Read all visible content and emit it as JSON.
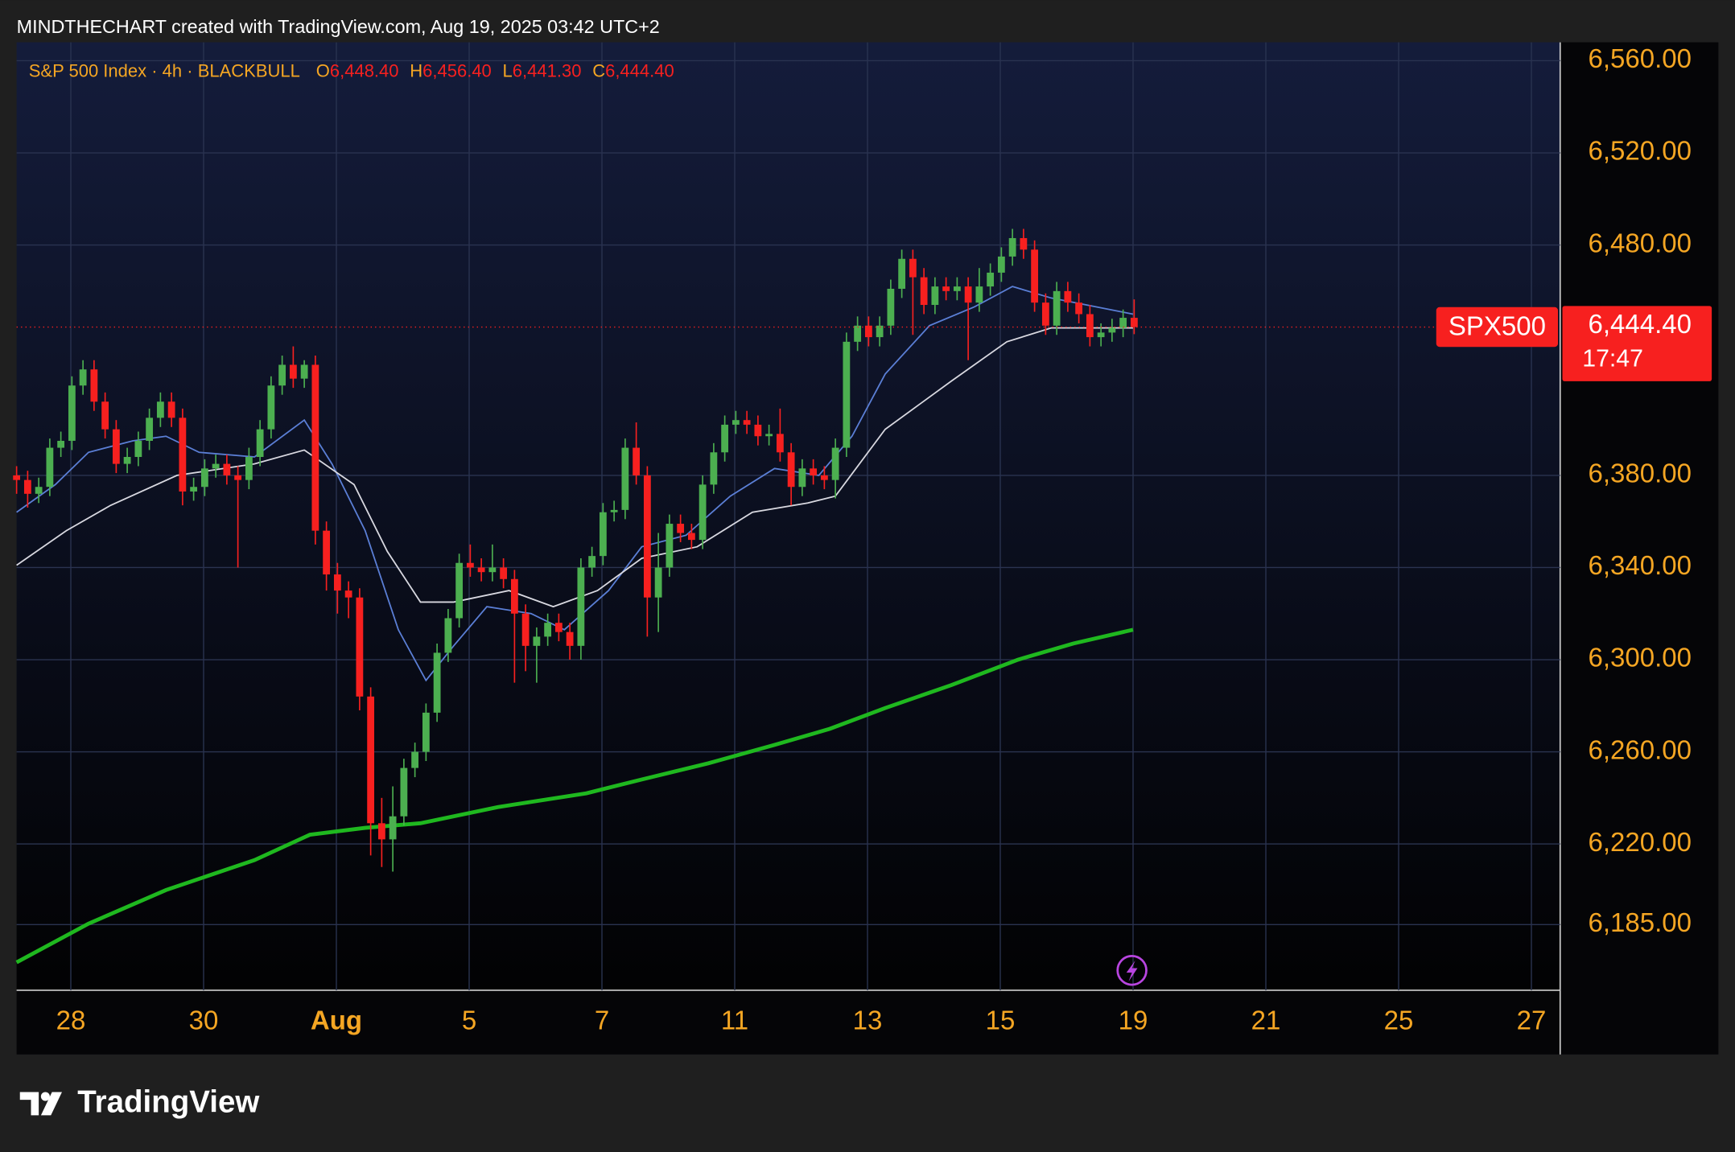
{
  "header": {
    "caption": "MINDTHECHART created with TradingView.com, Aug 19, 2025 03:42 UTC+2"
  },
  "footer": {
    "brand": "TradingView"
  },
  "chart_data": {
    "type": "candlestick",
    "title": "S&P 500 Index · 4h · BLACKBULL",
    "ohlc_legend": [
      {
        "key": "O",
        "value": "6,448.40"
      },
      {
        "key": "H",
        "value": "6,456.40"
      },
      {
        "key": "L",
        "value": "6,441.30"
      },
      {
        "key": "C",
        "value": "6,444.40"
      }
    ],
    "symbol_label": "SPX500",
    "price_label": "6,444.40",
    "countdown": "17:47",
    "up_color": "#4caf50",
    "down_color": "#f7201f",
    "open": [
      6380,
      6378,
      6372,
      6375,
      6392,
      6395,
      6419,
      6426,
      6412,
      6400,
      6385,
      6388,
      6395,
      6405,
      6412,
      6405,
      6373,
      6375,
      6383,
      6385,
      6380,
      6378,
      6388,
      6400,
      6419,
      6428,
      6422,
      6428,
      6356,
      6337,
      6330,
      6327,
      6284,
      6229,
      6222,
      6232,
      6253,
      6260,
      6277,
      6303,
      6318,
      6342,
      6340,
      6338,
      6340,
      6335,
      6320,
      6306,
      6310,
      6316,
      6312,
      6306,
      6340,
      6345,
      6364,
      6365,
      6392,
      6380,
      6327,
      6340,
      6359,
      6355,
      6352,
      6376,
      6390,
      6402,
      6404,
      6402,
      6397,
      6398,
      6390,
      6375,
      6383,
      6380,
      6378,
      6392,
      6438,
      6445,
      6440,
      6445,
      6461,
      6474,
      6466,
      6454,
      6462,
      6460,
      6462,
      6455,
      6462,
      6468,
      6475,
      6483,
      6478,
      6455,
      6445,
      6460,
      6455,
      6450,
      6440,
      6442,
      6444,
      6448.4
    ],
    "high": [
      6384,
      6382,
      6379,
      6396,
      6399,
      6423,
      6430,
      6430,
      6416,
      6404,
      6392,
      6399,
      6409,
      6416,
      6416,
      6409,
      6379,
      6387,
      6389,
      6389,
      6384,
      6392,
      6404,
      6423,
      6432,
      6436,
      6430,
      6432,
      6360,
      6342,
      6334,
      6331,
      6288,
      6240,
      6245,
      6257,
      6264,
      6281,
      6307,
      6322,
      6346,
      6350,
      6344,
      6350,
      6344,
      6339,
      6324,
      6314,
      6320,
      6320,
      6316,
      6344,
      6349,
      6368,
      6369,
      6396,
      6403,
      6384,
      6355,
      6363,
      6363,
      6359,
      6380,
      6394,
      6406,
      6408,
      6408,
      6406,
      6402,
      6409,
      6394,
      6387,
      6387,
      6384,
      6396,
      6442,
      6449,
      6449,
      6449,
      6465,
      6478,
      6478,
      6470,
      6466,
      6466,
      6466,
      6466,
      6470,
      6472,
      6479,
      6487,
      6487,
      6482,
      6459,
      6464,
      6464,
      6459,
      6454,
      6446,
      6448,
      6452,
      6456.4
    ],
    "low": [
      6372,
      6366,
      6368,
      6371,
      6388,
      6391,
      6415,
      6408,
      6396,
      6381,
      6381,
      6384,
      6391,
      6401,
      6401,
      6367,
      6369,
      6371,
      6379,
      6376,
      6340,
      6374,
      6384,
      6396,
      6415,
      6418,
      6418,
      6350,
      6330,
      6320,
      6318,
      6278,
      6215,
      6210,
      6208,
      6228,
      6249,
      6256,
      6273,
      6299,
      6314,
      6336,
      6334,
      6334,
      6331,
      6290,
      6295,
      6290,
      6306,
      6308,
      6300,
      6300,
      6336,
      6341,
      6360,
      6361,
      6376,
      6310,
      6312,
      6336,
      6351,
      6348,
      6348,
      6372,
      6386,
      6398,
      6398,
      6393,
      6393,
      6386,
      6367,
      6371,
      6376,
      6374,
      6370,
      6388,
      6434,
      6436,
      6436,
      6441,
      6457,
      6441,
      6450,
      6450,
      6456,
      6456,
      6430,
      6451,
      6458,
      6464,
      6471,
      6474,
      6451,
      6441,
      6441,
      6451,
      6446,
      6436,
      6436,
      6438,
      6440,
      6441.3
    ],
    "close": [
      6378,
      6372,
      6375,
      6392,
      6395,
      6419,
      6426,
      6412,
      6400,
      6385,
      6388,
      6395,
      6405,
      6412,
      6405,
      6373,
      6375,
      6383,
      6385,
      6380,
      6378,
      6388,
      6400,
      6419,
      6428,
      6422,
      6428,
      6356,
      6337,
      6330,
      6327,
      6284,
      6229,
      6222,
      6232,
      6253,
      6260,
      6277,
      6303,
      6318,
      6342,
      6340,
      6338,
      6340,
      6335,
      6320,
      6306,
      6310,
      6316,
      6312,
      6306,
      6340,
      6345,
      6364,
      6365,
      6392,
      6380,
      6327,
      6340,
      6359,
      6355,
      6352,
      6376,
      6390,
      6402,
      6404,
      6402,
      6397,
      6398,
      6390,
      6375,
      6383,
      6380,
      6378,
      6392,
      6438,
      6445,
      6440,
      6445,
      6461,
      6474,
      6466,
      6454,
      6462,
      6460,
      6462,
      6455,
      6462,
      6468,
      6475,
      6483,
      6478,
      6455,
      6445,
      6460,
      6455,
      6450,
      6440,
      6442,
      6444,
      6448.4,
      6444.4
    ],
    "series": [
      {
        "color": "#5b7fd6",
        "x": [
          0,
          3.5,
          6.5,
          10.5,
          13.5,
          16.5,
          21.5,
          26,
          28.5,
          31.5,
          34.5,
          37,
          39.5,
          42.5,
          46.5,
          49.5,
          53.5,
          56.5,
          60.5,
          64.5,
          68.5,
          72.5,
          75.5,
          78.5,
          82.5,
          86.5,
          90,
          93.5,
          100.9
        ],
        "values": [
          6364,
          6376,
          6390,
          6395,
          6397,
          6390,
          6388,
          6404,
          6385,
          6356,
          6313,
          6291,
          6306,
          6323,
          6320,
          6313,
          6330,
          6349,
          6354,
          6371,
          6383,
          6380,
          6397,
          6424,
          6445,
          6453,
          6462,
          6457,
          6450
        ]
      },
      {
        "color": "#d8d8e0",
        "x": [
          0,
          4.5,
          8.5,
          14.5,
          21.5,
          26,
          30.5,
          33.5,
          36.5,
          39.5,
          44.5,
          48.5,
          52.5,
          56.5,
          61.5,
          66.5,
          71.5,
          74,
          78.5,
          84.5,
          89.5,
          93.5,
          100.9
        ],
        "values": [
          6341,
          6356,
          6367,
          6380,
          6385,
          6391,
          6376,
          6347,
          6325,
          6325,
          6330,
          6323,
          6330,
          6344,
          6349,
          6364,
          6368,
          6371,
          6400,
          6421,
          6438,
          6444,
          6444
        ]
      },
      {
        "color": "#1fb81f",
        "x": [
          0,
          6.5,
          13.5,
          21.5,
          26.5,
          31.5,
          36.5,
          43.5,
          51.5,
          56.5,
          62.5,
          68.5,
          73.5,
          78.5,
          84.5,
          90.5,
          95.5,
          100.9
        ],
        "values": [
          6168.6,
          6185.4,
          6200,
          6213,
          6224,
          6227,
          6229,
          6236,
          6242,
          6248,
          6255,
          6263,
          6270,
          6279,
          6289,
          6300,
          6307,
          6313
        ]
      }
    ],
    "xlim": [
      0,
      139.5
    ],
    "xticks": [
      {
        "value": 4.9,
        "label": "28"
      },
      {
        "value": 16.9,
        "label": "30"
      },
      {
        "value": 28.9,
        "label": "Aug"
      },
      {
        "value": 40.9,
        "label": "5"
      },
      {
        "value": 52.9,
        "label": "7"
      },
      {
        "value": 64.9,
        "label": "11"
      },
      {
        "value": 76.9,
        "label": "13"
      },
      {
        "value": 88.9,
        "label": "15"
      },
      {
        "value": 100.9,
        "label": "19"
      },
      {
        "value": 112.9,
        "label": "21"
      },
      {
        "value": 124.9,
        "label": "25"
      },
      {
        "value": 136.9,
        "label": "27"
      }
    ],
    "ylim": [
      6156.5,
      6568
    ],
    "yticks": [
      {
        "value": 6560,
        "label": "6,560.00"
      },
      {
        "value": 6520,
        "label": "6,520.00"
      },
      {
        "value": 6480,
        "label": "6,480.00"
      },
      {
        "value": 6380,
        "label": "6,380.00"
      },
      {
        "value": 6340,
        "label": "6,340.00"
      },
      {
        "value": 6300,
        "label": "6,300.00"
      },
      {
        "value": 6260,
        "label": "6,260.00"
      },
      {
        "value": 6220,
        "label": "6,220.00"
      },
      {
        "value": 6185,
        "label": "6,185.00"
      }
    ],
    "grid": true
  }
}
